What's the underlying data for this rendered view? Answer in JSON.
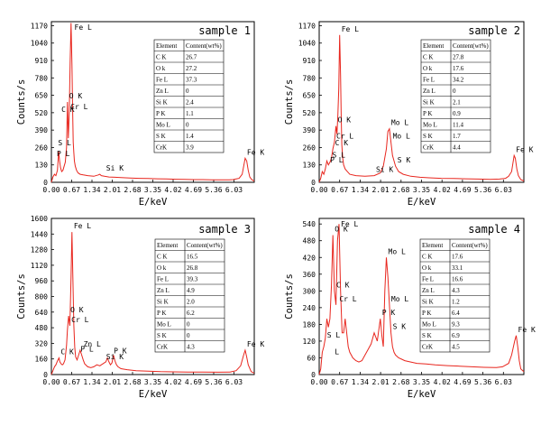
{
  "chart_data": [
    {
      "type": "line",
      "title": "sample 1",
      "xlabel": "E/keV",
      "ylabel": "Counts/s",
      "xlim": [
        0,
        6.7
      ],
      "ylim": [
        0,
        1200
      ],
      "xticks": [
        "0.00",
        "0.67",
        "1.34",
        "2.01",
        "2.68",
        "3.35",
        "4.02",
        "4.69",
        "5.36",
        "6.03"
      ],
      "yticks": [
        "0",
        "130",
        "260",
        "390",
        "520",
        "650",
        "780",
        "910",
        "1040",
        "1170"
      ],
      "series": [
        {
          "color": "#e8261e",
          "x": [
            0.0,
            0.05,
            0.1,
            0.15,
            0.2,
            0.24,
            0.27,
            0.3,
            0.34,
            0.38,
            0.42,
            0.46,
            0.5,
            0.53,
            0.56,
            0.59,
            0.62,
            0.65,
            0.68,
            0.7,
            0.72,
            0.74,
            0.76,
            0.79,
            0.83,
            0.88,
            0.95,
            1.05,
            1.2,
            1.4,
            1.55,
            1.6,
            1.65,
            1.75,
            1.9,
            2.1,
            2.3,
            2.6,
            2.9,
            3.2,
            3.5,
            3.8,
            4.1,
            4.4,
            4.7,
            5.0,
            5.3,
            5.6,
            5.85,
            6.0,
            6.1,
            6.2,
            6.3,
            6.4,
            6.45,
            6.5,
            6.55,
            6.6,
            6.65,
            6.7
          ],
          "y": [
            0,
            40,
            60,
            50,
            90,
            230,
            160,
            110,
            80,
            90,
            120,
            150,
            260,
            600,
            330,
            520,
            900,
            1190,
            880,
            560,
            300,
            220,
            160,
            120,
            90,
            70,
            60,
            55,
            50,
            45,
            55,
            60,
            50,
            45,
            40,
            38,
            35,
            32,
            30,
            28,
            26,
            25,
            23,
            22,
            20,
            20,
            18,
            18,
            18,
            20,
            25,
            30,
            60,
            180,
            160,
            90,
            40,
            25,
            15,
            10
          ]
        }
      ],
      "peak_labels": [
        {
          "text": "Fe L",
          "x": 0.7,
          "y": 1190
        },
        {
          "text": "O K",
          "x": 0.53,
          "y": 600
        },
        {
          "text": "Cr L",
          "x": 0.57,
          "y": 520
        },
        {
          "text": "C K",
          "x": 0.27,
          "y": 500
        },
        {
          "text": "S L",
          "x": 0.16,
          "y": 250
        },
        {
          "text": "P L",
          "x": 0.12,
          "y": 170
        },
        {
          "text": "Si K",
          "x": 1.75,
          "y": 60
        },
        {
          "text": "Fe K",
          "x": 6.4,
          "y": 180
        }
      ],
      "table": {
        "headers": [
          "Element",
          "Content(wt%)"
        ],
        "rows": [
          [
            "C K",
            "26.7"
          ],
          [
            "O k",
            "27.2"
          ],
          [
            "Fe L",
            "37.3"
          ],
          [
            "Zn L",
            "0"
          ],
          [
            "Si K",
            "2.4"
          ],
          [
            "P K",
            "1.1"
          ],
          [
            "Mo L",
            "0"
          ],
          [
            "S K",
            "1.4"
          ],
          [
            "CrK",
            "3.9"
          ]
        ]
      }
    },
    {
      "type": "line",
      "title": "sample 2",
      "xlabel": "E/keV",
      "ylabel": "Counts/s",
      "xlim": [
        0,
        6.7
      ],
      "ylim": [
        0,
        1200
      ],
      "xticks": [
        "0.00",
        "0.67",
        "1.34",
        "2.01",
        "2.68",
        "3.35",
        "4.02",
        "4.69",
        "5.36",
        "6.03"
      ],
      "yticks": [
        "0",
        "130",
        "260",
        "390",
        "520",
        "650",
        "780",
        "910",
        "1040",
        "1170"
      ],
      "series": [
        {
          "color": "#e8261e",
          "x": [
            0.0,
            0.05,
            0.1,
            0.15,
            0.2,
            0.25,
            0.3,
            0.35,
            0.4,
            0.45,
            0.5,
            0.55,
            0.58,
            0.61,
            0.64,
            0.67,
            0.7,
            0.72,
            0.74,
            0.77,
            0.8,
            0.85,
            0.92,
            1.0,
            1.2,
            1.5,
            1.8,
            2.0,
            2.1,
            2.2,
            2.25,
            2.3,
            2.35,
            2.4,
            2.5,
            2.6,
            2.75,
            3.0,
            3.3,
            3.6,
            4.0,
            4.4,
            4.8,
            5.2,
            5.6,
            5.9,
            6.1,
            6.2,
            6.3,
            6.38,
            6.42,
            6.47,
            6.52,
            6.6,
            6.7
          ],
          "y": [
            0,
            30,
            80,
            60,
            100,
            160,
            130,
            150,
            180,
            250,
            300,
            420,
            360,
            500,
            700,
            1100,
            800,
            500,
            280,
            180,
            130,
            100,
            80,
            60,
            50,
            45,
            50,
            70,
            120,
            250,
            380,
            400,
            300,
            200,
            120,
            80,
            60,
            45,
            38,
            34,
            30,
            28,
            26,
            24,
            22,
            24,
            30,
            45,
            80,
            200,
            180,
            100,
            50,
            20,
            10
          ]
        }
      ],
      "peak_labels": [
        {
          "text": "Fe L",
          "x": 0.67,
          "y": 1100
        },
        {
          "text": "O K",
          "x": 0.55,
          "y": 420
        },
        {
          "text": "Cr L",
          "x": 0.5,
          "y": 300
        },
        {
          "text": "C K",
          "x": 0.46,
          "y": 250
        },
        {
          "text": "S L",
          "x": 0.37,
          "y": 160
        },
        {
          "text": "P L",
          "x": 0.3,
          "y": 120
        },
        {
          "text": "Mo L",
          "x": 2.3,
          "y": 400
        },
        {
          "text": "Mo L",
          "x": 2.35,
          "y": 300
        },
        {
          "text": "S K",
          "x": 2.5,
          "y": 120
        },
        {
          "text": "Si K",
          "x": 1.8,
          "y": 50
        },
        {
          "text": "Fe K",
          "x": 6.38,
          "y": 200
        }
      ],
      "table": {
        "headers": [
          "Element",
          "Content(wt%)"
        ],
        "rows": [
          [
            "C K",
            "27.8"
          ],
          [
            "O k",
            "17.6"
          ],
          [
            "Fe L",
            "34.2"
          ],
          [
            "Zn L",
            "0"
          ],
          [
            "Si K",
            "2.1"
          ],
          [
            "P K",
            "0.9"
          ],
          [
            "Mo L",
            "11.4"
          ],
          [
            "S K",
            "1.7"
          ],
          [
            "CrK",
            "4.4"
          ]
        ]
      }
    },
    {
      "type": "line",
      "title": "sample 3",
      "xlabel": "E/keV",
      "ylabel": "Counts/s",
      "xlim": [
        0,
        6.7
      ],
      "ylim": [
        0,
        1600
      ],
      "xticks": [
        "0.00",
        "0.67",
        "1.34",
        "2.01",
        "2.68",
        "3.35",
        "4.02",
        "4.69",
        "5.36",
        "6.03"
      ],
      "yticks": [
        "0",
        "160",
        "320",
        "480",
        "640",
        "800",
        "960",
        "1120",
        "1280",
        "1440",
        "1600"
      ],
      "series": [
        {
          "color": "#e8261e",
          "x": [
            0.0,
            0.05,
            0.1,
            0.15,
            0.2,
            0.25,
            0.28,
            0.32,
            0.36,
            0.4,
            0.45,
            0.5,
            0.53,
            0.57,
            0.61,
            0.65,
            0.68,
            0.71,
            0.74,
            0.77,
            0.8,
            0.85,
            0.9,
            0.95,
            1.0,
            1.05,
            1.1,
            1.2,
            1.3,
            1.4,
            1.5,
            1.6,
            1.7,
            1.8,
            1.85,
            1.9,
            1.95,
            2.0,
            2.05,
            2.1,
            2.15,
            2.2,
            2.3,
            2.5,
            2.8,
            3.2,
            3.6,
            4.0,
            4.5,
            5.0,
            5.5,
            5.9,
            6.1,
            6.25,
            6.35,
            6.4,
            6.45,
            6.5,
            6.6,
            6.7
          ],
          "y": [
            0,
            40,
            80,
            100,
            140,
            170,
            130,
            110,
            100,
            110,
            150,
            300,
            460,
            600,
            500,
            1000,
            1460,
            1000,
            500,
            280,
            180,
            150,
            200,
            250,
            200,
            150,
            110,
            80,
            70,
            80,
            100,
            90,
            110,
            130,
            170,
            130,
            100,
            120,
            200,
            140,
            100,
            80,
            60,
            50,
            40,
            35,
            30,
            28,
            26,
            25,
            24,
            26,
            40,
            90,
            200,
            250,
            180,
            100,
            30,
            15
          ]
        }
      ],
      "peak_labels": [
        {
          "text": "Fe L",
          "x": 0.68,
          "y": 1460
        },
        {
          "text": "O K",
          "x": 0.57,
          "y": 600
        },
        {
          "text": "Cr L",
          "x": 0.6,
          "y": 500
        },
        {
          "text": "C K",
          "x": 0.25,
          "y": 170
        },
        {
          "text": "P L",
          "x": 0.9,
          "y": 200
        },
        {
          "text": "Zn L",
          "x": 1.0,
          "y": 250
        },
        {
          "text": "Si K",
          "x": 1.75,
          "y": 120
        },
        {
          "text": "P K",
          "x": 2.0,
          "y": 180
        },
        {
          "text": "Fe K",
          "x": 6.4,
          "y": 250
        }
      ],
      "table": {
        "headers": [
          "Element",
          "Content(wt%)"
        ],
        "rows": [
          [
            "C K",
            "16.5"
          ],
          [
            "O k",
            "26.8"
          ],
          [
            "Fe L",
            "39.3"
          ],
          [
            "Zn L",
            "4.9"
          ],
          [
            "Si K",
            "2.0"
          ],
          [
            "P K",
            "6.2"
          ],
          [
            "Mo L",
            "0"
          ],
          [
            "S K",
            "0"
          ],
          [
            "CrK",
            "4.3"
          ]
        ]
      }
    },
    {
      "type": "line",
      "title": "sample 4",
      "xlabel": "E/keV",
      "ylabel": "Counts/s",
      "xlim": [
        0,
        6.7
      ],
      "ylim": [
        0,
        560
      ],
      "xticks": [
        "0.00",
        "0.67",
        "1.34",
        "2.01",
        "2.68",
        "3.35",
        "4.02",
        "4.69",
        "5.36",
        "6.03"
      ],
      "yticks": [
        "0",
        "60",
        "120",
        "180",
        "240",
        "300",
        "360",
        "420",
        "480",
        "540"
      ],
      "series": [
        {
          "color": "#e8261e",
          "x": [
            0.0,
            0.05,
            0.1,
            0.15,
            0.2,
            0.25,
            0.3,
            0.35,
            0.4,
            0.45,
            0.5,
            0.55,
            0.6,
            0.65,
            0.7,
            0.75,
            0.8,
            0.85,
            0.9,
            0.95,
            1.0,
            1.05,
            1.1,
            1.2,
            1.3,
            1.4,
            1.5,
            1.6,
            1.7,
            1.8,
            1.9,
            2.0,
            2.05,
            2.1,
            2.15,
            2.2,
            2.25,
            2.3,
            2.35,
            2.4,
            2.45,
            2.5,
            2.6,
            2.7,
            2.8,
            3.0,
            3.2,
            3.5,
            3.8,
            4.2,
            4.6,
            5.0,
            5.4,
            5.8,
            6.0,
            6.2,
            6.3,
            6.4,
            6.45,
            6.5,
            6.55,
            6.6,
            6.7
          ],
          "y": [
            0,
            20,
            80,
            100,
            130,
            200,
            170,
            200,
            320,
            500,
            300,
            250,
            480,
            540,
            300,
            150,
            150,
            200,
            150,
            100,
            80,
            70,
            60,
            50,
            45,
            50,
            70,
            90,
            110,
            150,
            120,
            200,
            140,
            100,
            300,
            420,
            350,
            250,
            150,
            100,
            80,
            70,
            60,
            55,
            50,
            45,
            40,
            38,
            35,
            32,
            30,
            28,
            26,
            25,
            28,
            40,
            70,
            120,
            140,
            100,
            50,
            20,
            10
          ]
        }
      ],
      "peak_labels": [
        {
          "text": "O K",
          "x": 0.45,
          "y": 500
        },
        {
          "text": "Fe L",
          "x": 0.65,
          "y": 540
        },
        {
          "text": "C K",
          "x": 0.5,
          "y": 300
        },
        {
          "text": "Cr L",
          "x": 0.6,
          "y": 250
        },
        {
          "text": "S L",
          "x": 0.2,
          "y": 120
        },
        {
          "text": "L",
          "x": 0.45,
          "y": 60
        },
        {
          "text": "P K",
          "x": 2.0,
          "y": 200
        },
        {
          "text": "Mo L",
          "x": 2.2,
          "y": 420
        },
        {
          "text": "Mo L",
          "x": 2.3,
          "y": 250
        },
        {
          "text": "S K",
          "x": 2.35,
          "y": 150
        },
        {
          "text": "Fe K",
          "x": 6.45,
          "y": 140
        }
      ],
      "table": {
        "headers": [
          "Element",
          "Content(wt%)"
        ],
        "rows": [
          [
            "C K",
            "17.6"
          ],
          [
            "O k",
            "33.1"
          ],
          [
            "Fe L",
            "16.6"
          ],
          [
            "Zn L",
            "4.3"
          ],
          [
            "Si K",
            "1.2"
          ],
          [
            "P K",
            "6.4"
          ],
          [
            "Mo L",
            "9.3"
          ],
          [
            "S K",
            "6.9"
          ],
          [
            "CrK",
            "4.5"
          ]
        ]
      }
    }
  ]
}
